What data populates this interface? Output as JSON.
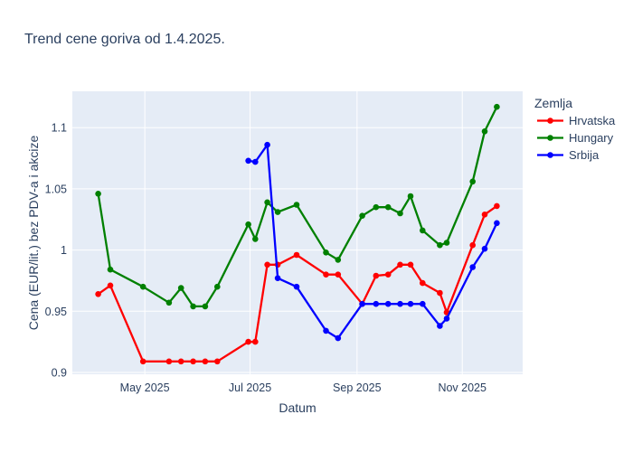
{
  "title": "Trend cene goriva od 1.4.2025.",
  "chart_data": {
    "type": "line",
    "title": "Trend cene goriva od 1.4.2025.",
    "xlabel": "Datum",
    "ylabel": "Cena (EUR/lit.) bez PDV-a i akcize",
    "legend_title": "Zemlja",
    "legend_position": "right",
    "grid": true,
    "x_type": "date",
    "x_range": [
      "2025-03-20",
      "2025-12-06"
    ],
    "y_range": [
      0.8985,
      1.1297
    ],
    "x_ticks": [
      {
        "date": "2025-05-01",
        "label": "May 2025"
      },
      {
        "date": "2025-07-01",
        "label": "Jul 2025"
      },
      {
        "date": "2025-09-01",
        "label": "Sep 2025"
      },
      {
        "date": "2025-11-01",
        "label": "Nov 2025"
      }
    ],
    "y_ticks": [
      {
        "value": 0.9,
        "label": "0.9"
      },
      {
        "value": 0.95,
        "label": "0.95"
      },
      {
        "value": 1,
        "label": "1"
      },
      {
        "value": 1.05,
        "label": "1.05"
      },
      {
        "value": 1.1,
        "label": "1.1"
      }
    ],
    "series": [
      {
        "name": "Hrvatska",
        "color": "#ff0000",
        "x": [
          "2025-04-04",
          "2025-04-11",
          "2025-04-30",
          "2025-05-15",
          "2025-05-22",
          "2025-05-29",
          "2025-06-05",
          "2025-06-12",
          "2025-06-30",
          "2025-07-04",
          "2025-07-11",
          "2025-07-17",
          "2025-07-28",
          "2025-08-14",
          "2025-08-21",
          "2025-09-04",
          "2025-09-12",
          "2025-09-19",
          "2025-09-26",
          "2025-10-02",
          "2025-10-09",
          "2025-10-19",
          "2025-10-23",
          "2025-11-07",
          "2025-11-14",
          "2025-11-21"
        ],
        "y": [
          0.964,
          0.971,
          0.909,
          0.909,
          0.909,
          0.909,
          0.909,
          0.909,
          0.925,
          0.925,
          0.988,
          0.988,
          0.996,
          0.98,
          0.98,
          0.956,
          0.979,
          0.98,
          0.988,
          0.988,
          0.973,
          0.965,
          0.949,
          1.004,
          1.029,
          1.036
        ]
      },
      {
        "name": "Hungary",
        "color": "#008000",
        "x": [
          "2025-04-04",
          "2025-04-11",
          "2025-04-30",
          "2025-05-15",
          "2025-05-22",
          "2025-05-29",
          "2025-06-05",
          "2025-06-12",
          "2025-06-30",
          "2025-07-04",
          "2025-07-11",
          "2025-07-17",
          "2025-07-28",
          "2025-08-14",
          "2025-08-21",
          "2025-09-04",
          "2025-09-12",
          "2025-09-19",
          "2025-09-26",
          "2025-10-02",
          "2025-10-09",
          "2025-10-19",
          "2025-10-23",
          "2025-11-07",
          "2025-11-14",
          "2025-11-21"
        ],
        "y": [
          1.046,
          0.984,
          0.97,
          0.957,
          0.969,
          0.954,
          0.954,
          0.97,
          1.021,
          1.009,
          1.039,
          1.031,
          1.037,
          0.998,
          0.992,
          1.028,
          1.035,
          1.035,
          1.03,
          1.044,
          1.016,
          1.004,
          1.006,
          1.056,
          1.097,
          1.117
        ]
      },
      {
        "name": "Srbija",
        "color": "#0000ff",
        "x": [
          "2025-06-30",
          "2025-07-04",
          "2025-07-11",
          "2025-07-17",
          "2025-07-28",
          "2025-08-14",
          "2025-08-21",
          "2025-09-04",
          "2025-09-12",
          "2025-09-19",
          "2025-09-26",
          "2025-10-02",
          "2025-10-09",
          "2025-10-19",
          "2025-10-23",
          "2025-11-07",
          "2025-11-14",
          "2025-11-21"
        ],
        "y": [
          1.073,
          1.072,
          1.086,
          0.977,
          0.97,
          0.934,
          0.928,
          0.956,
          0.956,
          0.956,
          0.956,
          0.956,
          0.956,
          0.938,
          0.944,
          0.986,
          1.001,
          1.022
        ]
      }
    ],
    "colors": {
      "plot_background": "#e5ecf6",
      "gridline": "#ffffff",
      "text": "#2a3f5f"
    }
  }
}
